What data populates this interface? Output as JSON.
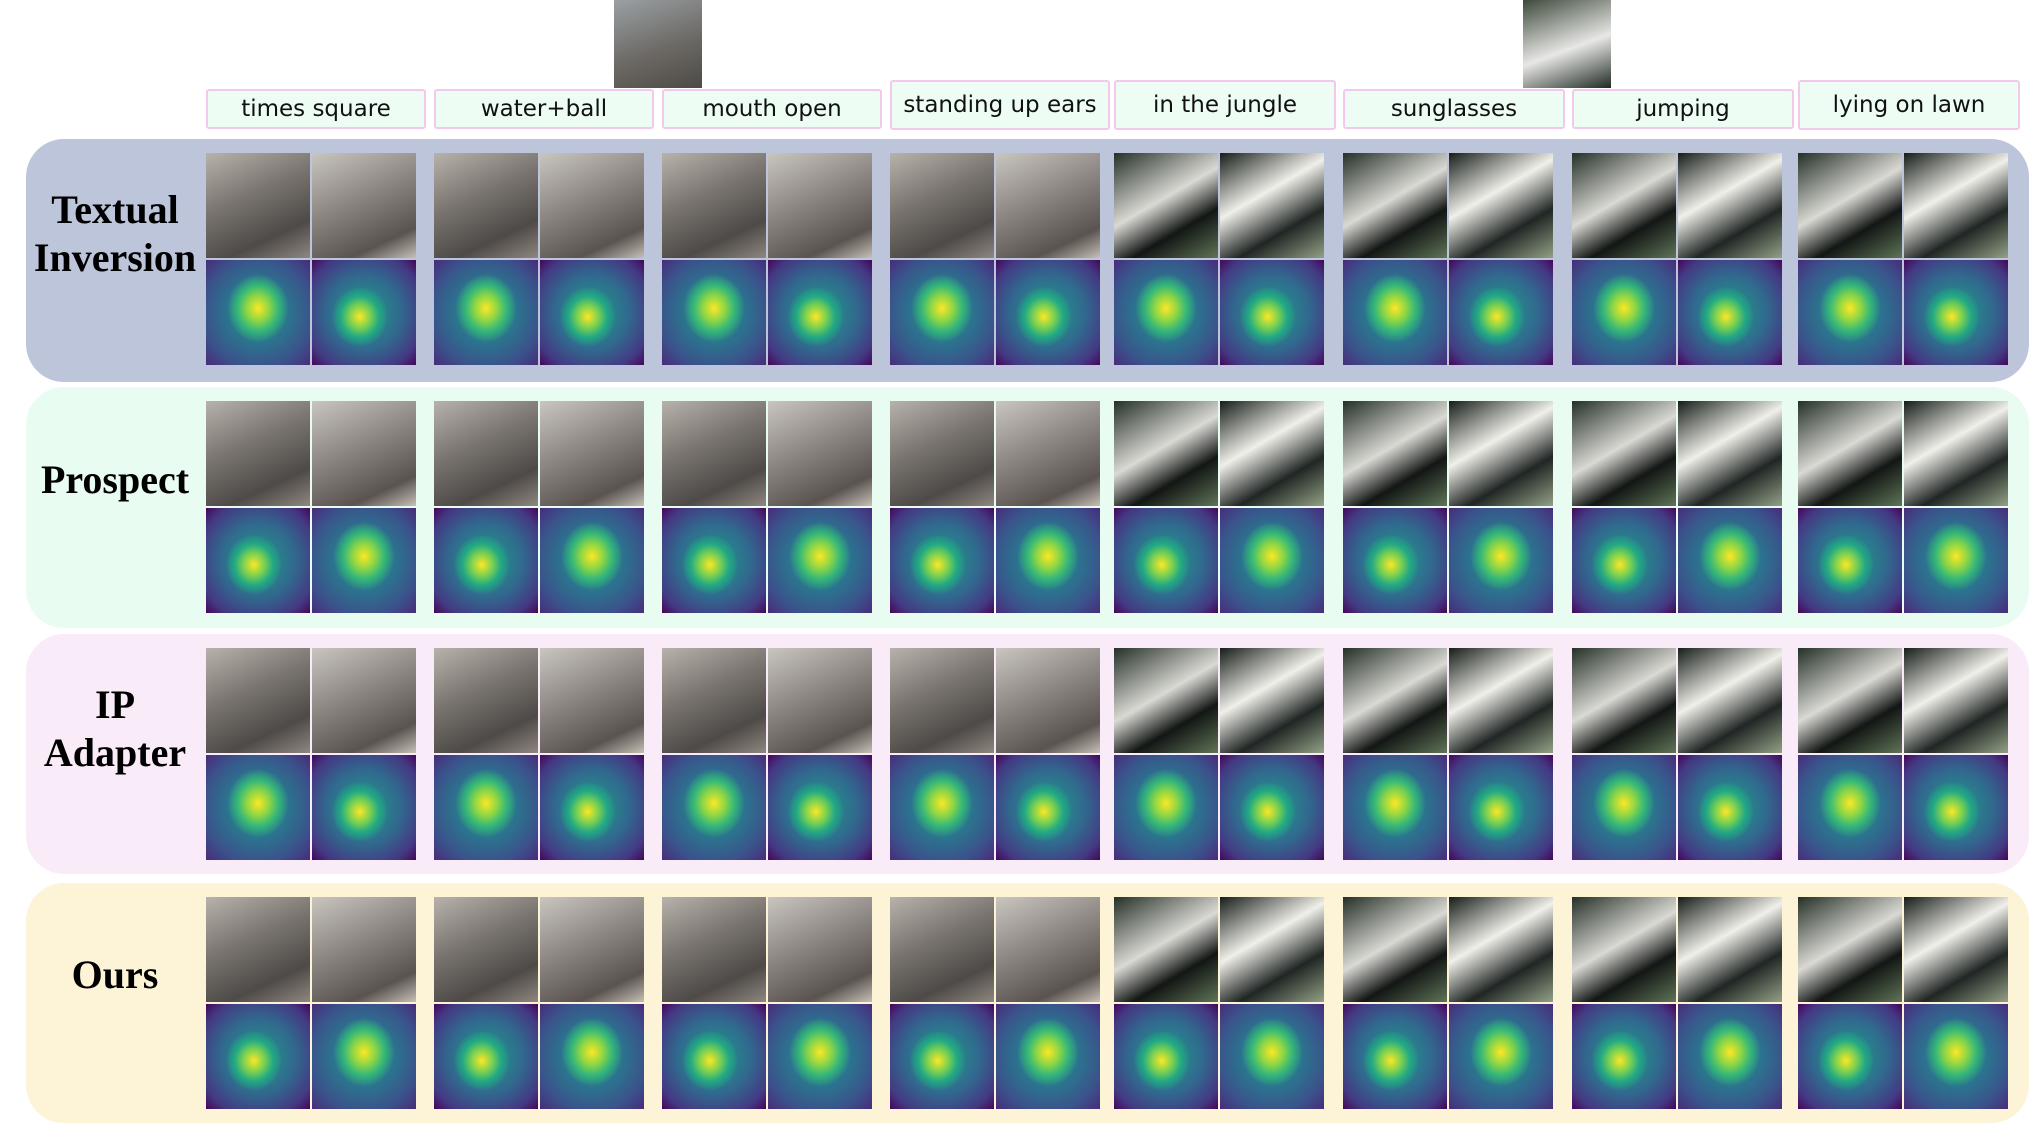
{
  "prompts": [
    "times square",
    "water+ball",
    "mouth open",
    "standing up ears",
    "in the jungle",
    "sunglasses",
    "jumping",
    "lying on lawn"
  ],
  "methods": [
    "Textual Inversion",
    "Prospect",
    "IP Adapter",
    "Ours"
  ],
  "reference_images": [
    "reference-dog-image",
    "reference-cat-image"
  ],
  "band_colors": [
    "#bcc5da",
    "#e9fcf1",
    "#f9ecf8",
    "#fdf3d6"
  ]
}
